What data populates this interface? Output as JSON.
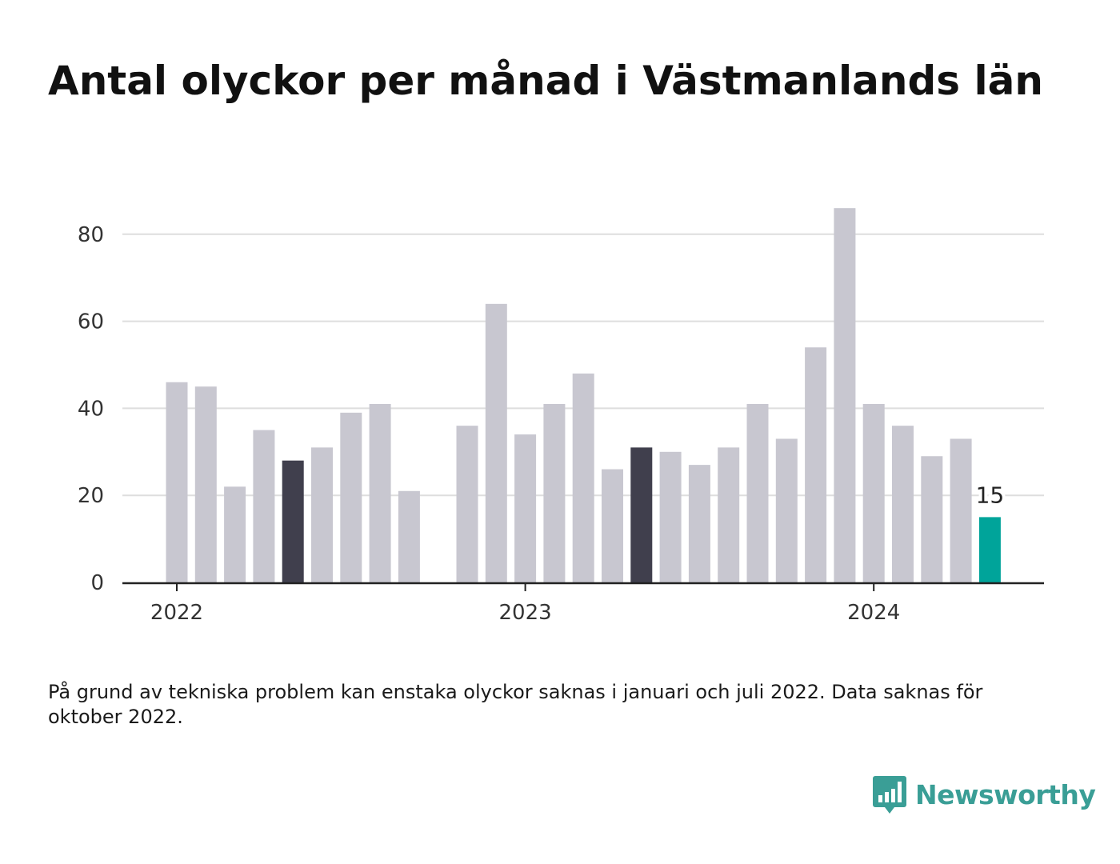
{
  "title": "Antal olyckor per månad i Västmanlands län",
  "note": "På grund av tekniska problem kan enstaka olyckor saknas i januari och juli 2022. Data saknas för oktober 2022.",
  "brand": {
    "name": "Newsworthy",
    "icon": "bar-chart-logo-icon",
    "color": "#3a9e96"
  },
  "colors": {
    "bar": "#c8c7d0",
    "highlight": "#403f4d",
    "latest": "#00a49a",
    "grid": "#dedede",
    "axis": "#222222"
  },
  "chart_data": {
    "type": "bar",
    "title": "Antal olyckor per månad i Västmanlands län",
    "xlabel": "",
    "ylabel": "",
    "ylim": [
      0,
      90
    ],
    "yticks": [
      0,
      20,
      40,
      60,
      80
    ],
    "xticks": [
      {
        "label": "2022",
        "month": "2022-01"
      },
      {
        "label": "2023",
        "month": "2023-01"
      },
      {
        "label": "2024",
        "month": "2024-01"
      }
    ],
    "grid": true,
    "legend": "none",
    "categories": [
      "2022-01",
      "2022-02",
      "2022-03",
      "2022-04",
      "2022-05",
      "2022-06",
      "2022-07",
      "2022-08",
      "2022-09",
      "2022-10",
      "2022-11",
      "2022-12",
      "2023-01",
      "2023-02",
      "2023-03",
      "2023-04",
      "2023-05",
      "2023-06",
      "2023-07",
      "2023-08",
      "2023-09",
      "2023-10",
      "2023-11",
      "2023-12",
      "2024-01",
      "2024-02",
      "2024-03",
      "2024-04",
      "2024-05"
    ],
    "values": [
      46,
      45,
      22,
      35,
      28,
      31,
      39,
      41,
      21,
      null,
      36,
      64,
      34,
      41,
      48,
      26,
      31,
      30,
      27,
      31,
      41,
      33,
      54,
      86,
      41,
      36,
      29,
      33,
      15
    ],
    "highlighted": [
      "2022-05",
      "2023-05"
    ],
    "latest": "2024-05",
    "data_labels": [
      {
        "month": "2024-05",
        "text": "15"
      }
    ]
  }
}
